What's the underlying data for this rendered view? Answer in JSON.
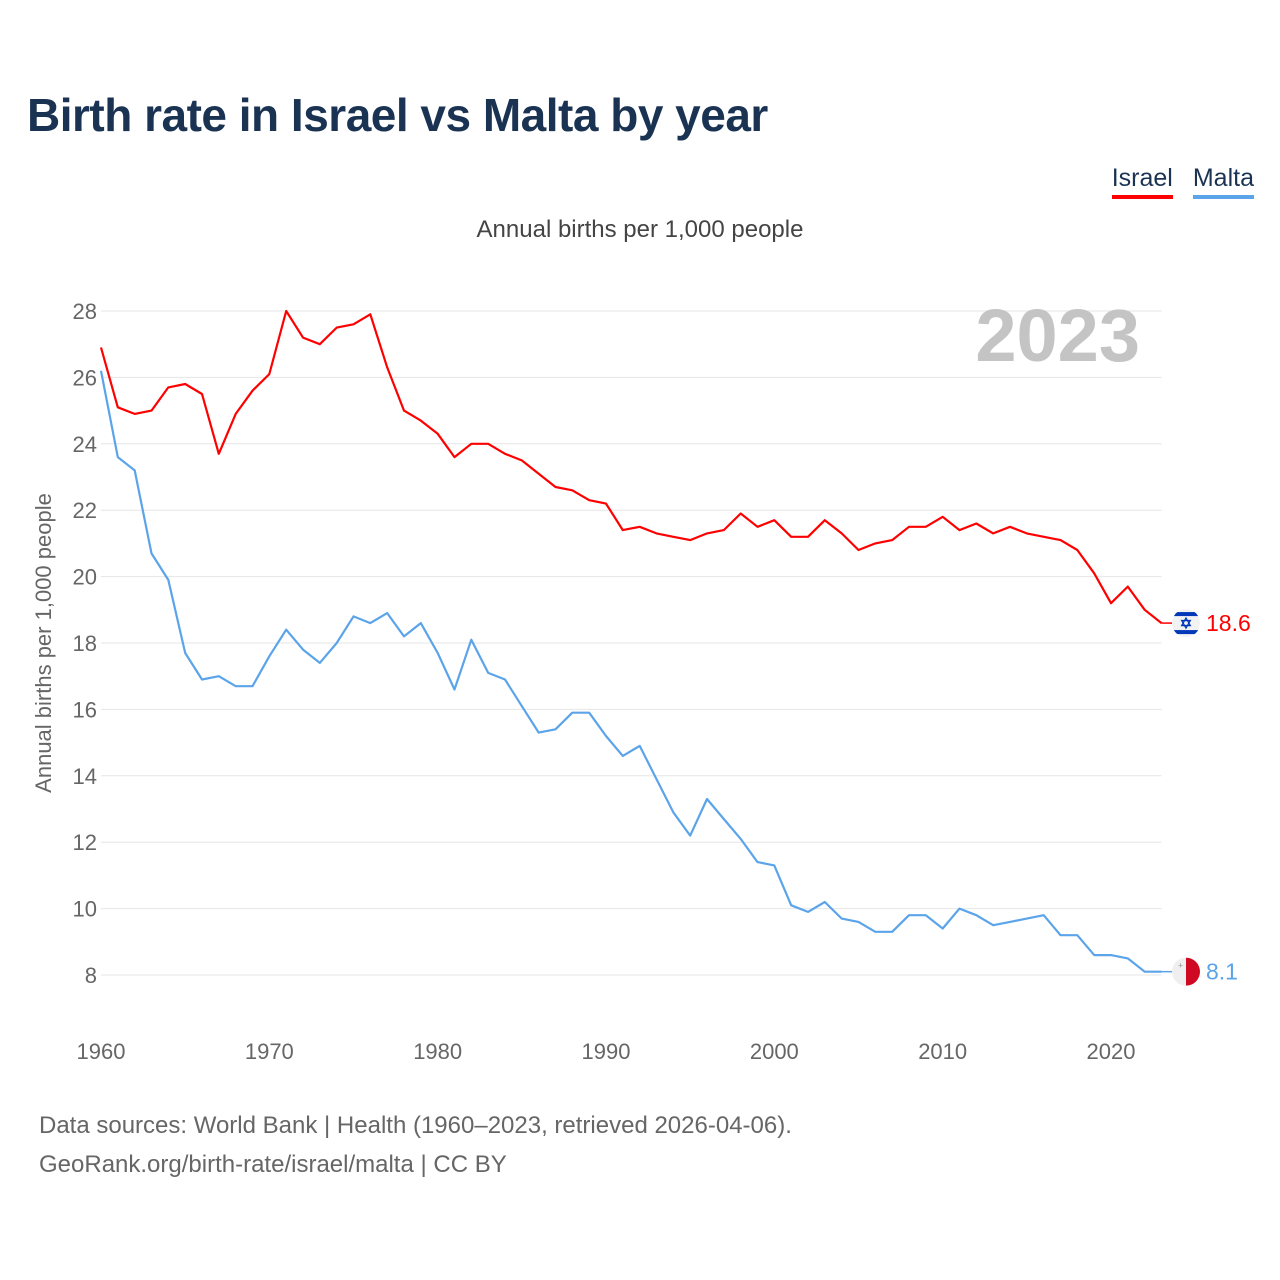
{
  "title": "Birth rate in Israel vs Malta by year",
  "legend": {
    "israel": "Israel",
    "malta": "Malta"
  },
  "subtitle": "Annual births per 1,000 people",
  "watermark_year": "2023",
  "footer": {
    "line1": "Data sources: World Bank | Health (1960–2023, retrieved 2026-04-06).",
    "line2": "GeoRank.org/birth-rate/israel/malta | CC BY"
  },
  "colors": {
    "israel": "#ff0000",
    "malta": "#5ba4ea"
  },
  "chart_data": {
    "type": "line",
    "title": "Birth rate in Israel vs Malta by year",
    "xlabel": "",
    "ylabel": "Annual births per 1,000 people",
    "ylim": [
      7,
      29
    ],
    "xlim": [
      1960,
      2023
    ],
    "yticks": [
      8,
      10,
      12,
      14,
      16,
      18,
      20,
      22,
      24,
      26,
      28
    ],
    "xticks": [
      1960,
      1970,
      1980,
      1990,
      2000,
      2010,
      2020
    ],
    "grid": true,
    "legend_position": "top-right",
    "x_start": 1960,
    "series": [
      {
        "name": "Israel",
        "end_label": "18.6",
        "flag": "israel-flag",
        "values": [
          26.9,
          25.1,
          24.9,
          25.0,
          25.7,
          25.8,
          25.5,
          23.7,
          24.9,
          25.6,
          26.1,
          28.0,
          27.2,
          27.0,
          27.5,
          27.6,
          27.9,
          26.3,
          25.0,
          24.7,
          24.3,
          23.6,
          24.0,
          24.0,
          23.7,
          23.5,
          23.1,
          22.7,
          22.6,
          22.3,
          22.2,
          21.4,
          21.5,
          21.3,
          21.2,
          21.1,
          21.3,
          21.4,
          21.9,
          21.5,
          21.7,
          21.2,
          21.2,
          21.7,
          21.3,
          20.8,
          21.0,
          21.1,
          21.5,
          21.5,
          21.8,
          21.4,
          21.6,
          21.3,
          21.5,
          21.3,
          21.2,
          21.1,
          20.8,
          20.1,
          19.2,
          19.7,
          19.0,
          18.6
        ]
      },
      {
        "name": "Malta",
        "end_label": "8.1",
        "flag": "malta-flag",
        "values": [
          26.2,
          23.6,
          23.2,
          20.7,
          19.9,
          17.7,
          16.9,
          17.0,
          16.7,
          16.7,
          17.6,
          18.4,
          17.8,
          17.4,
          18.0,
          18.8,
          18.6,
          18.9,
          18.2,
          18.6,
          17.7,
          16.6,
          18.1,
          17.1,
          16.9,
          16.1,
          15.3,
          15.4,
          15.9,
          15.9,
          15.2,
          14.6,
          14.9,
          13.9,
          12.9,
          12.2,
          13.3,
          12.7,
          12.1,
          11.4,
          11.3,
          10.1,
          9.9,
          10.2,
          9.7,
          9.6,
          9.3,
          9.3,
          9.8,
          9.8,
          9.4,
          10.0,
          9.8,
          9.5,
          9.6,
          9.7,
          9.8,
          9.2,
          9.2,
          8.6,
          8.6,
          8.5,
          8.1,
          8.1
        ]
      }
    ]
  }
}
